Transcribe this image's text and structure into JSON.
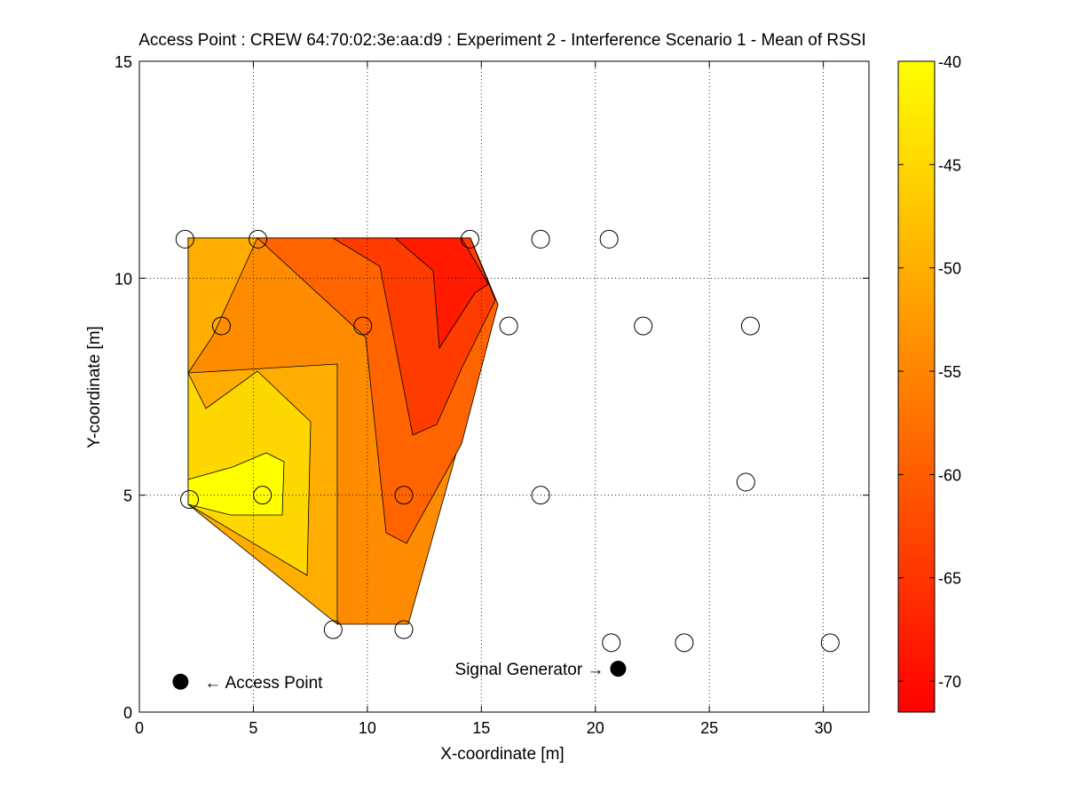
{
  "chart_data": {
    "type": "contour",
    "title": "Access Point : CREW 64:70:02:3e:aa:d9 : Experiment 2 - Interference Scenario 1 - Mean of RSSI",
    "xlabel": "X-coordinate [m]",
    "ylabel": "Y-coordinate [m]",
    "xlim": [
      0,
      32
    ],
    "ylim": [
      0,
      15
    ],
    "xticks": [
      "0",
      "5",
      "10",
      "15",
      "20",
      "25",
      "30"
    ],
    "yticks": [
      "0",
      "5",
      "10",
      "15"
    ],
    "grid": true,
    "colorbar": {
      "colormap": "autumn",
      "range": [
        -71.5,
        -40
      ],
      "ticks": [
        "-40",
        "-45",
        "-50",
        "-55",
        "-60",
        "-65",
        "-70"
      ]
    },
    "colors": {
      "c1": "#ffff00",
      "c2": "#ffd700",
      "c3": "#ffad00",
      "c4": "#ff8c00",
      "c5": "#ff6400",
      "c6": "#ff3c00",
      "c7": "#ff1a00"
    },
    "measurement_points": [
      {
        "x": 2.0,
        "y": 10.9
      },
      {
        "x": 5.2,
        "y": 10.9
      },
      {
        "x": 14.5,
        "y": 10.9
      },
      {
        "x": 17.6,
        "y": 10.9
      },
      {
        "x": 20.6,
        "y": 10.9
      },
      {
        "x": 3.6,
        "y": 8.9
      },
      {
        "x": 9.8,
        "y": 8.9
      },
      {
        "x": 16.2,
        "y": 8.9
      },
      {
        "x": 22.1,
        "y": 8.9
      },
      {
        "x": 26.8,
        "y": 8.9
      },
      {
        "x": 2.2,
        "y": 4.9
      },
      {
        "x": 5.4,
        "y": 5.0
      },
      {
        "x": 11.6,
        "y": 5.0
      },
      {
        "x": 17.6,
        "y": 5.0
      },
      {
        "x": 26.6,
        "y": 5.3
      },
      {
        "x": 8.5,
        "y": 1.9
      },
      {
        "x": 11.6,
        "y": 1.9
      },
      {
        "x": 20.7,
        "y": 1.6
      },
      {
        "x": 23.9,
        "y": 1.6
      },
      {
        "x": 30.3,
        "y": 1.6
      }
    ],
    "access_point": {
      "x": 2.0,
      "y": 0.7,
      "label": "← Access Point"
    },
    "signal_generator": {
      "x": 21.0,
      "y": 1.0,
      "label": "Signal Generator →"
    }
  }
}
